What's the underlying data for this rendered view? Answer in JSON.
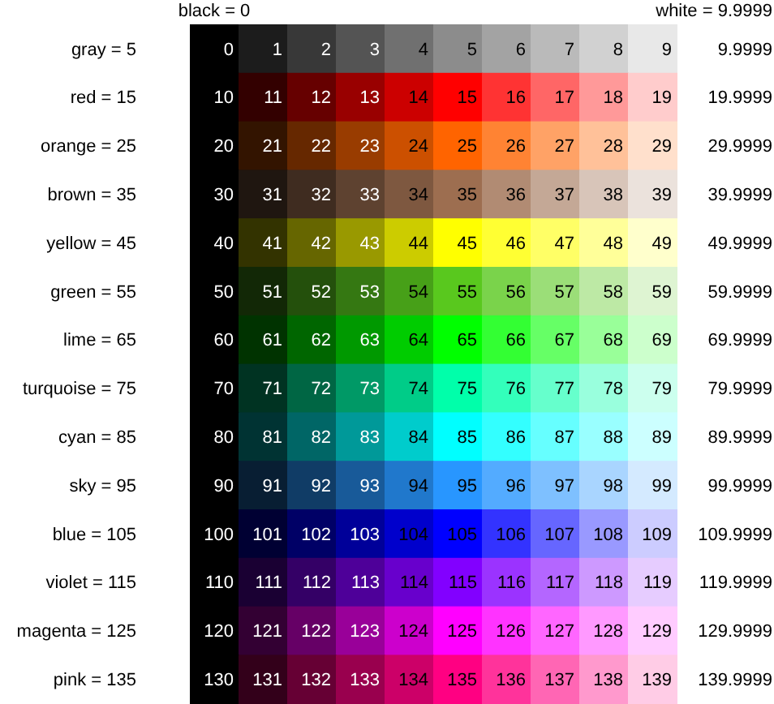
{
  "chart_data": {
    "type": "heatmap",
    "categories": [
      null,
      null,
      null,
      null,
      null,
      null,
      null,
      null,
      null,
      null
    ],
    "y_categories": [
      "gray = 5",
      "red = 15",
      "orange = 25",
      "brown = 35",
      "yellow = 45",
      "green = 55",
      "lime = 65",
      "turquoise = 75",
      "cyan = 85",
      "sky = 95",
      "blue = 105",
      "violet = 115",
      "magenta = 125",
      "pink = 135"
    ],
    "y2_categories": [
      "9.9999",
      "19.9999",
      "29.9999",
      "39.9999",
      "49.9999",
      "59.9999",
      "69.9999",
      "79.9999",
      "89.9999",
      "99.9999",
      "109.9999",
      "119.9999",
      "129.9999",
      "139.9999"
    ],
    "cells": [
      [
        0,
        1,
        2,
        3,
        4,
        5,
        6,
        7,
        8,
        9
      ],
      [
        10,
        11,
        12,
        13,
        14,
        15,
        16,
        17,
        18,
        19
      ],
      [
        20,
        21,
        22,
        23,
        24,
        25,
        26,
        27,
        28,
        29
      ],
      [
        30,
        31,
        32,
        33,
        34,
        35,
        36,
        37,
        38,
        39
      ],
      [
        40,
        41,
        42,
        43,
        44,
        45,
        46,
        47,
        48,
        49
      ],
      [
        50,
        51,
        52,
        53,
        54,
        55,
        56,
        57,
        58,
        59
      ],
      [
        60,
        61,
        62,
        63,
        64,
        65,
        66,
        67,
        68,
        69
      ],
      [
        70,
        71,
        72,
        73,
        74,
        75,
        76,
        77,
        78,
        79
      ],
      [
        80,
        81,
        82,
        83,
        84,
        85,
        86,
        87,
        88,
        89
      ],
      [
        90,
        91,
        92,
        93,
        94,
        95,
        96,
        97,
        98,
        99
      ],
      [
        100,
        101,
        102,
        103,
        104,
        105,
        106,
        107,
        108,
        109
      ],
      [
        110,
        111,
        112,
        113,
        114,
        115,
        116,
        117,
        118,
        119
      ],
      [
        120,
        121,
        122,
        123,
        124,
        125,
        126,
        127,
        128,
        129
      ],
      [
        130,
        131,
        132,
        133,
        134,
        135,
        136,
        137,
        138,
        139
      ]
    ],
    "colors": [
      "#8c8c8c",
      "#ff0000",
      "#ff6400",
      "#9d6e50",
      "#ffff00",
      "#59c81e",
      "#00ff00",
      "#00ffaa",
      "#00ffff",
      "#2896ff",
      "#0000ff",
      "#8200ff",
      "#ff00ff",
      "#ff0082"
    ],
    "data_labels": true,
    "annotations": [
      "black = 0",
      "white = 9.9999"
    ]
  }
}
